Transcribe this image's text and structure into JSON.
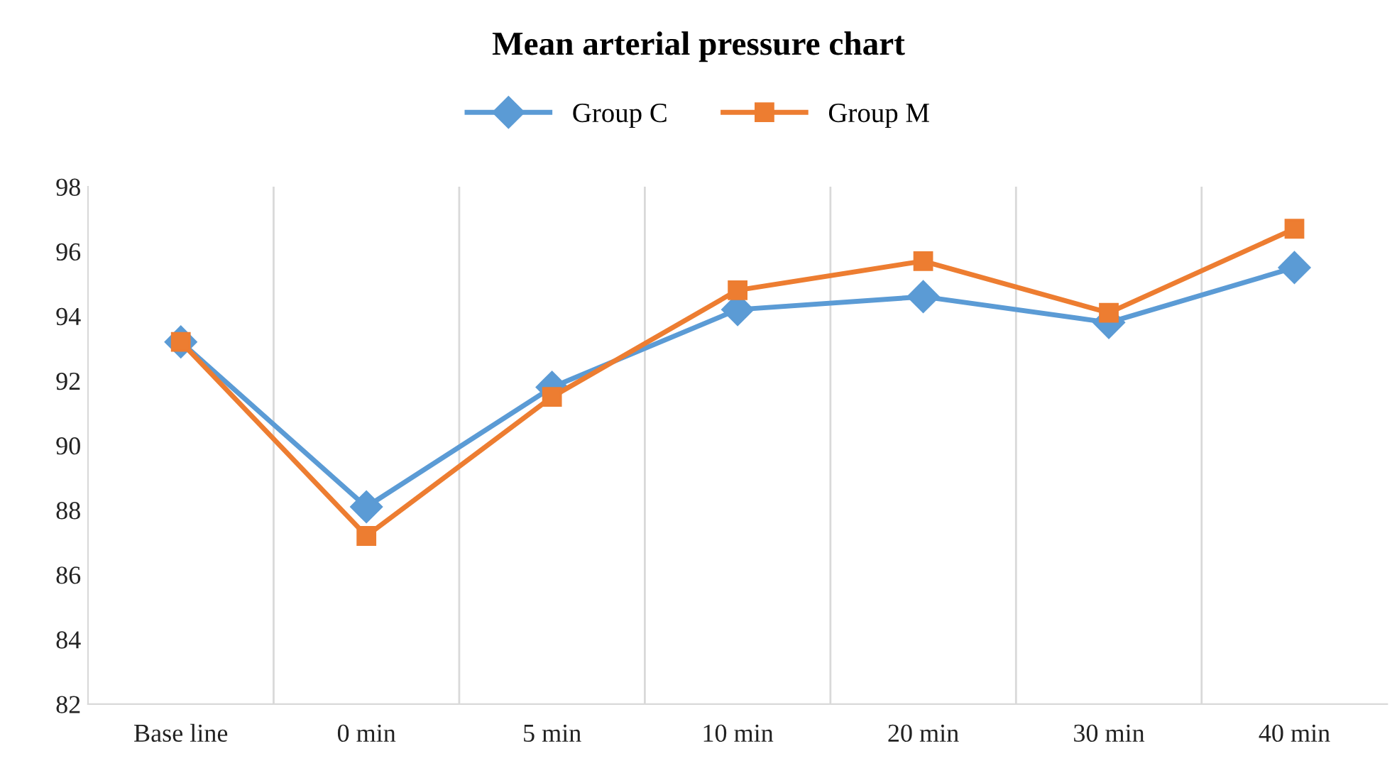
{
  "chart_data": {
    "type": "line",
    "title": "Mean arterial pressure chart",
    "categories": [
      "Base line",
      "0 min",
      "5 min",
      "10 min",
      "20 min",
      "30 min",
      "40 min"
    ],
    "series": [
      {
        "name": "Group C",
        "color": "#5b9bd5",
        "marker": "diamond",
        "values": [
          93.2,
          88.1,
          91.8,
          94.2,
          94.6,
          93.8,
          95.5
        ]
      },
      {
        "name": "Group M",
        "color": "#ed7d31",
        "marker": "square",
        "values": [
          93.2,
          87.2,
          91.5,
          94.8,
          95.7,
          94.1,
          96.7
        ]
      }
    ],
    "ylim": [
      82,
      98
    ],
    "yticks": [
      82,
      84,
      86,
      88,
      90,
      92,
      94,
      96,
      98
    ],
    "grid": "x",
    "legend": "top",
    "line_style": "solid"
  }
}
